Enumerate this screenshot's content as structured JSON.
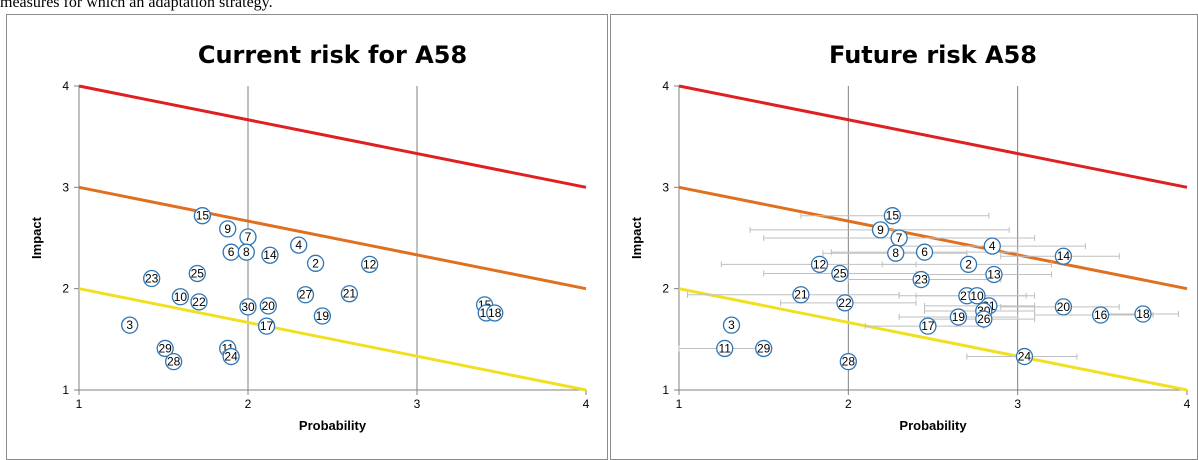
{
  "caption": "measures for which an adaptation strategy.",
  "colors": {
    "red_line": "#e02020",
    "orange_line": "#e07020",
    "yellow_line": "#f0e020",
    "marker": "#2e75b6",
    "grid": "#808080",
    "error_bar": "#bfbfbf"
  },
  "chart_data": [
    {
      "type": "scatter",
      "title": "Current risk for A58",
      "xlabel": "Probability",
      "ylabel": "Impact",
      "xlim": [
        1,
        4
      ],
      "ylim": [
        1,
        4
      ],
      "xticks": [
        "1",
        "2",
        "3",
        "4"
      ],
      "yticks": [
        "1",
        "2",
        "3",
        "4"
      ],
      "grid": "vertical",
      "lines": [
        {
          "color": "red",
          "x": [
            1,
            4
          ],
          "y": [
            4,
            3
          ]
        },
        {
          "color": "orange",
          "x": [
            1,
            4
          ],
          "y": [
            3,
            2
          ]
        },
        {
          "color": "yellow",
          "x": [
            1,
            4
          ],
          "y": [
            2,
            1
          ]
        }
      ],
      "points": [
        {
          "label": "15",
          "x": 1.73,
          "y": 2.72
        },
        {
          "label": "9",
          "x": 1.88,
          "y": 2.59
        },
        {
          "label": "7",
          "x": 2.0,
          "y": 2.51
        },
        {
          "label": "6",
          "x": 1.9,
          "y": 2.36
        },
        {
          "label": "8",
          "x": 1.99,
          "y": 2.36
        },
        {
          "label": "14",
          "x": 2.13,
          "y": 2.33
        },
        {
          "label": "4",
          "x": 2.3,
          "y": 2.43
        },
        {
          "label": "2",
          "x": 2.4,
          "y": 2.25
        },
        {
          "label": "12",
          "x": 2.72,
          "y": 2.24
        },
        {
          "label": "23",
          "x": 1.43,
          "y": 2.1
        },
        {
          "label": "25",
          "x": 1.7,
          "y": 2.15
        },
        {
          "label": "10",
          "x": 1.6,
          "y": 1.92
        },
        {
          "label": "22",
          "x": 1.71,
          "y": 1.87
        },
        {
          "label": "30",
          "x": 2.0,
          "y": 1.82
        },
        {
          "label": "20",
          "x": 2.12,
          "y": 1.83
        },
        {
          "label": "27",
          "x": 2.34,
          "y": 1.94
        },
        {
          "label": "21",
          "x": 2.6,
          "y": 1.95
        },
        {
          "label": "19",
          "x": 2.44,
          "y": 1.73
        },
        {
          "label": "17",
          "x": 2.11,
          "y": 1.63
        },
        {
          "label": "15",
          "x": 3.4,
          "y": 1.84
        },
        {
          "label": "16",
          "x": 3.41,
          "y": 1.76
        },
        {
          "label": "18",
          "x": 3.46,
          "y": 1.76
        },
        {
          "label": "3",
          "x": 1.3,
          "y": 1.64
        },
        {
          "label": "29",
          "x": 1.51,
          "y": 1.41
        },
        {
          "label": "28",
          "x": 1.56,
          "y": 1.28
        },
        {
          "label": "11",
          "x": 1.88,
          "y": 1.41
        },
        {
          "label": "24",
          "x": 1.9,
          "y": 1.33
        }
      ]
    },
    {
      "type": "scatter",
      "title": "Future risk A58",
      "xlabel": "Probability",
      "ylabel": "Impact",
      "xlim": [
        1,
        4
      ],
      "ylim": [
        1,
        4
      ],
      "xticks": [
        "1",
        "2",
        "3",
        "4"
      ],
      "yticks": [
        "1",
        "2",
        "3",
        "4"
      ],
      "grid": "vertical",
      "lines": [
        {
          "color": "red",
          "x": [
            1,
            4
          ],
          "y": [
            4,
            3
          ]
        },
        {
          "color": "orange",
          "x": [
            1,
            4
          ],
          "y": [
            3,
            2
          ]
        },
        {
          "color": "yellow",
          "x": [
            1,
            4
          ],
          "y": [
            2,
            1
          ]
        }
      ],
      "points": [
        {
          "label": "15",
          "x": 2.26,
          "y": 2.72,
          "xerr": [
            1.72,
            2.83
          ]
        },
        {
          "label": "9",
          "x": 2.19,
          "y": 2.58,
          "xerr": [
            1.42,
            2.95
          ]
        },
        {
          "label": "7",
          "x": 2.3,
          "y": 2.5,
          "xerr": [
            1.5,
            3.1
          ]
        },
        {
          "label": "6",
          "x": 2.45,
          "y": 2.36,
          "xerr": [
            1.9,
            3.0
          ]
        },
        {
          "label": "8",
          "x": 2.28,
          "y": 2.35,
          "xerr": [
            1.85,
            2.7
          ]
        },
        {
          "label": "4",
          "x": 2.85,
          "y": 2.42,
          "xerr": [
            2.3,
            3.4
          ]
        },
        {
          "label": "14",
          "x": 3.27,
          "y": 2.32,
          "xerr": [
            2.9,
            3.6
          ]
        },
        {
          "label": "2",
          "x": 2.71,
          "y": 2.24,
          "xerr": [
            2.2,
            3.2
          ]
        },
        {
          "label": "12",
          "x": 1.83,
          "y": 2.24,
          "xerr": [
            1.25,
            2.4
          ]
        },
        {
          "label": "25",
          "x": 1.95,
          "y": 2.15,
          "xerr": [
            1.5,
            2.4
          ]
        },
        {
          "label": "13",
          "x": 2.86,
          "y": 2.14,
          "xerr": [
            2.4,
            3.2
          ]
        },
        {
          "label": "23",
          "x": 2.43,
          "y": 2.09,
          "xerr": [
            2.0,
            2.9
          ]
        },
        {
          "label": "21",
          "x": 1.72,
          "y": 1.94,
          "xerr": [
            1.05,
            2.3
          ]
        },
        {
          "label": "27",
          "x": 2.7,
          "y": 1.93,
          "xerr": [
            2.3,
            3.05
          ]
        },
        {
          "label": "10",
          "x": 2.76,
          "y": 1.93,
          "xerr": [
            2.4,
            3.1
          ]
        },
        {
          "label": "22",
          "x": 1.98,
          "y": 1.86,
          "xerr": [
            1.6,
            2.4
          ]
        },
        {
          "label": "31",
          "x": 2.83,
          "y": 1.83,
          "xerr": [
            2.45,
            3.1
          ]
        },
        {
          "label": "30",
          "x": 2.8,
          "y": 1.78,
          "xerr": [
            2.45,
            3.1
          ]
        },
        {
          "label": "20",
          "x": 3.27,
          "y": 1.82,
          "xerr": [
            2.9,
            3.6
          ]
        },
        {
          "label": "19",
          "x": 2.65,
          "y": 1.72,
          "xerr": [
            2.3,
            3.0
          ]
        },
        {
          "label": "26",
          "x": 2.8,
          "y": 1.7,
          "xerr": [
            2.45,
            3.1
          ]
        },
        {
          "label": "16",
          "x": 3.49,
          "y": 1.74,
          "xerr": [
            3.1,
            3.8
          ]
        },
        {
          "label": "18",
          "x": 3.74,
          "y": 1.75,
          "xerr": [
            3.45,
            3.95
          ]
        },
        {
          "label": "17",
          "x": 2.47,
          "y": 1.63,
          "xerr": [
            2.1,
            2.8
          ]
        },
        {
          "label": "3",
          "x": 1.31,
          "y": 1.64
        },
        {
          "label": "11",
          "x": 1.27,
          "y": 1.41,
          "xerr": [
            1.0,
            1.5
          ]
        },
        {
          "label": "29",
          "x": 1.5,
          "y": 1.41
        },
        {
          "label": "28",
          "x": 2.0,
          "y": 1.28
        },
        {
          "label": "24",
          "x": 3.04,
          "y": 1.33,
          "xerr": [
            2.7,
            3.35
          ]
        }
      ]
    }
  ]
}
